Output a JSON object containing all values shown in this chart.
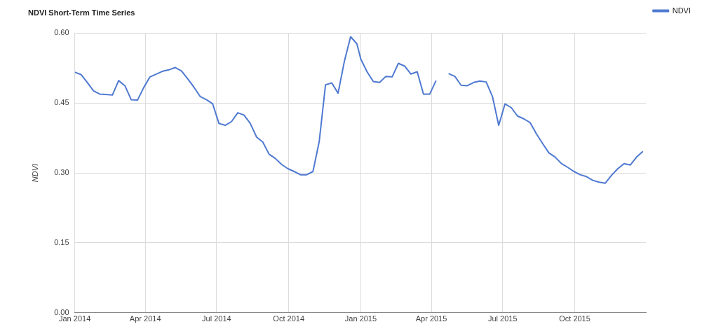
{
  "chart_data": {
    "type": "line",
    "title": "NDVI Short-Term Time Series",
    "ylabel": "NDVI",
    "x": [
      "2014-01-01",
      "2014-01-09",
      "2014-01-17",
      "2014-01-25",
      "2014-02-02",
      "2014-02-10",
      "2014-02-18",
      "2014-02-26",
      "2014-03-06",
      "2014-03-14",
      "2014-03-22",
      "2014-03-30",
      "2014-04-07",
      "2014-04-15",
      "2014-04-23",
      "2014-05-01",
      "2014-05-09",
      "2014-05-17",
      "2014-05-25",
      "2014-06-02",
      "2014-06-10",
      "2014-06-18",
      "2014-06-26",
      "2014-07-04",
      "2014-07-12",
      "2014-07-20",
      "2014-07-28",
      "2014-08-05",
      "2014-08-13",
      "2014-08-21",
      "2014-08-29",
      "2014-09-06",
      "2014-09-14",
      "2014-09-22",
      "2014-09-30",
      "2014-10-08",
      "2014-10-16",
      "2014-10-24",
      "2014-11-01",
      "2014-11-09",
      "2014-11-17",
      "2014-11-25",
      "2014-12-03",
      "2014-12-11",
      "2014-12-19",
      "2014-12-27",
      "2015-01-01",
      "2015-01-09",
      "2015-01-17",
      "2015-01-25",
      "2015-02-02",
      "2015-02-10",
      "2015-02-18",
      "2015-02-26",
      "2015-03-06",
      "2015-03-14",
      "2015-03-22",
      "2015-03-30",
      "2015-04-07",
      "2015-04-15",
      "2015-04-23",
      "2015-05-01",
      "2015-05-09",
      "2015-05-17",
      "2015-05-25",
      "2015-06-02",
      "2015-06-10",
      "2015-06-18",
      "2015-06-26",
      "2015-07-04",
      "2015-07-12",
      "2015-07-20",
      "2015-07-28",
      "2015-08-05",
      "2015-08-13",
      "2015-08-21",
      "2015-08-29",
      "2015-09-06",
      "2015-09-14",
      "2015-09-22",
      "2015-09-30",
      "2015-10-08",
      "2015-10-16",
      "2015-10-24",
      "2015-11-01",
      "2015-11-09",
      "2015-11-17",
      "2015-11-25",
      "2015-12-03",
      "2015-12-11",
      "2015-12-19",
      "2015-12-27"
    ],
    "series": [
      {
        "name": "NDVI",
        "color": "#4f79d1",
        "values": [
          0.516,
          0.511,
          0.494,
          0.476,
          0.469,
          0.468,
          0.467,
          0.498,
          0.487,
          0.457,
          0.456,
          0.483,
          0.506,
          0.512,
          0.518,
          0.521,
          0.526,
          0.519,
          0.502,
          0.484,
          0.464,
          0.457,
          0.448,
          0.406,
          0.402,
          0.41,
          0.429,
          0.424,
          0.406,
          0.377,
          0.366,
          0.34,
          0.331,
          0.318,
          0.309,
          0.303,
          0.296,
          0.296,
          0.303,
          0.368,
          0.489,
          0.493,
          0.471,
          0.539,
          0.592,
          0.577,
          0.544,
          0.517,
          0.496,
          0.494,
          0.507,
          0.506,
          0.535,
          0.529,
          0.512,
          0.517,
          0.469,
          0.469,
          0.498,
          null,
          0.513,
          0.507,
          0.488,
          0.487,
          0.494,
          0.497,
          0.495,
          0.464,
          0.402,
          0.448,
          0.44,
          0.422,
          0.416,
          0.408,
          0.384,
          0.363,
          0.343,
          0.334,
          0.32,
          0.312,
          0.303,
          0.296,
          0.292,
          0.284,
          0.28,
          0.278,
          0.295,
          0.309,
          0.32,
          0.317,
          0.334,
          0.346
        ]
      }
    ],
    "xlim": [
      "2014-01-01",
      "2015-12-31"
    ],
    "xticks": [
      {
        "value": "2014-01-01",
        "label": "Jan 2014"
      },
      {
        "value": "2014-04-01",
        "label": "Apr 2014"
      },
      {
        "value": "2014-07-01",
        "label": "Jul 2014"
      },
      {
        "value": "2014-10-01",
        "label": "Oct 2014"
      },
      {
        "value": "2015-01-01",
        "label": "Jan 2015"
      },
      {
        "value": "2015-04-01",
        "label": "Apr 2015"
      },
      {
        "value": "2015-07-01",
        "label": "Jul 2015"
      },
      {
        "value": "2015-10-01",
        "label": "Oct 2015"
      }
    ],
    "ylim": [
      0,
      0.6
    ],
    "yticks": [
      {
        "value": 0,
        "label": "0.00"
      },
      {
        "value": 0.15,
        "label": "0.15"
      },
      {
        "value": 0.3,
        "label": "0.30"
      },
      {
        "value": 0.45,
        "label": "0.45"
      },
      {
        "value": 0.6,
        "label": "0.60"
      }
    ],
    "grid": true,
    "legend": "top right",
    "marker": "none",
    "line_style": "solid"
  }
}
